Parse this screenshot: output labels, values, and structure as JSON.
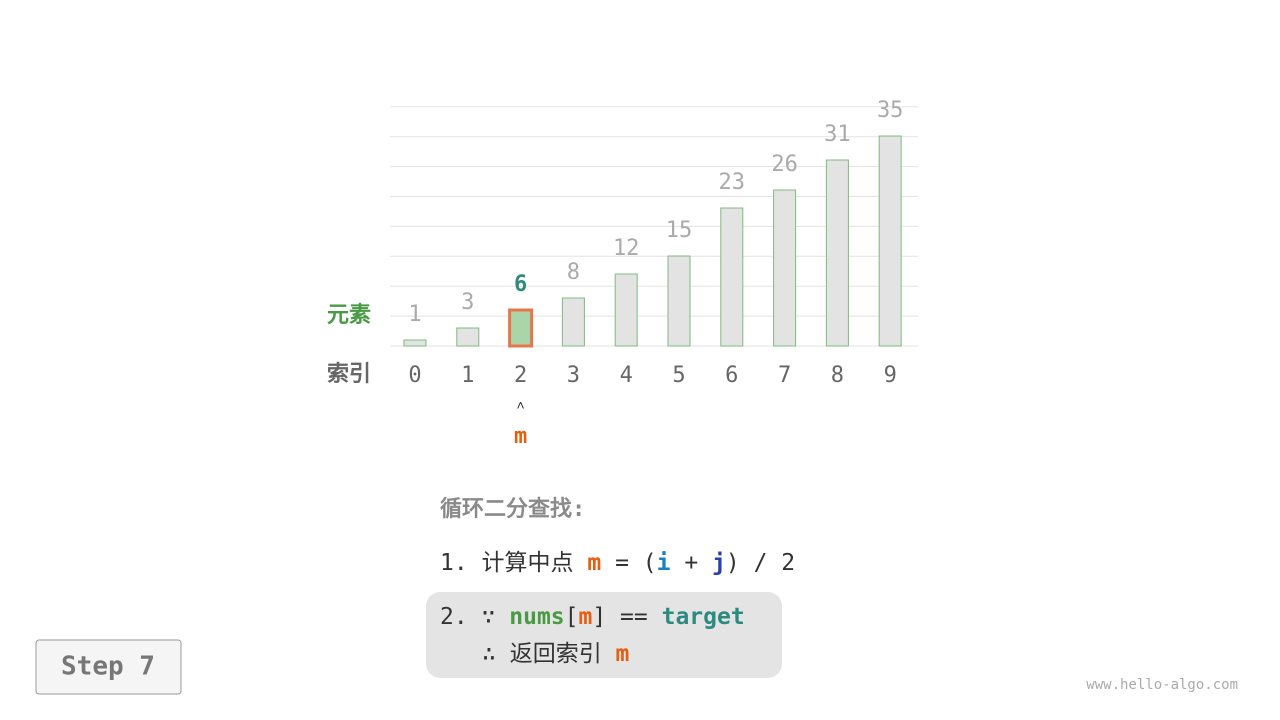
{
  "array": {
    "row_label_values": "元素",
    "row_label_indices": "索引",
    "values": [
      1,
      3,
      6,
      8,
      12,
      15,
      23,
      26,
      31,
      35
    ],
    "indices": [
      0,
      1,
      2,
      3,
      4,
      5,
      6,
      7,
      8,
      9
    ],
    "highlight": 2
  },
  "pointer": {
    "label": "m",
    "index": 2
  },
  "steps": {
    "title": "循环二分查找:",
    "line1": [
      "1. 计算中点 ",
      "m",
      " = (",
      "i",
      " + ",
      "j",
      ") / 2"
    ],
    "line2": [
      "2. ∵ ",
      "nums",
      "[",
      "m",
      "] == ",
      "target"
    ],
    "line3": [
      "∴ 返回索引 ",
      "m"
    ]
  },
  "step_label": "Step 7",
  "watermark": "www.hello-algo.com"
}
